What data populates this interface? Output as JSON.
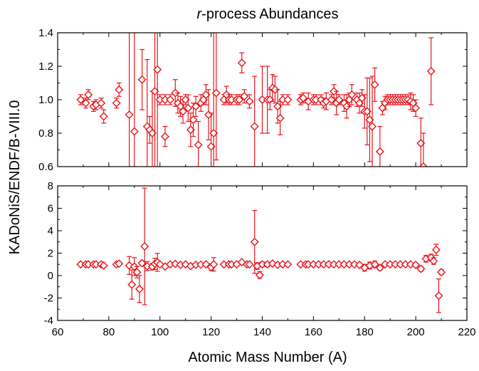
{
  "chart_data": {
    "type": "scatter",
    "title_italic": "r",
    "title_rest": "-process Abundances",
    "xlabel": "Atomic Mass Number (A)",
    "ylabel": "KADoNiS/ENDF/B-VIII.0",
    "xlim": [
      60,
      220
    ],
    "x_ticks": [
      60,
      80,
      100,
      120,
      140,
      160,
      180,
      200,
      220
    ],
    "series_color": "#e8141c",
    "marker": "open-diamond",
    "panels": [
      {
        "id": "top",
        "ylim": [
          0.6,
          1.4
        ],
        "y_ticks": [
          0.6,
          0.8,
          1.0,
          1.2,
          1.4
        ],
        "y_tick_labels": [
          "0.6",
          "0.8",
          "1.0",
          "1.2",
          "1.4"
        ],
        "points": [
          {
            "x": 69,
            "y": 1.0,
            "err": 0.03
          },
          {
            "x": 71,
            "y": 0.98,
            "err": 0.03
          },
          {
            "x": 72,
            "y": 1.03,
            "err": 0.03
          },
          {
            "x": 74,
            "y": 0.96,
            "err": 0.03
          },
          {
            "x": 75,
            "y": 0.97,
            "err": 0.03
          },
          {
            "x": 77,
            "y": 0.98,
            "err": 0.03
          },
          {
            "x": 78,
            "y": 0.9,
            "err": 0.04
          },
          {
            "x": 83,
            "y": 0.98,
            "err": 0.03
          },
          {
            "x": 84,
            "y": 1.06,
            "err": 0.04
          },
          {
            "x": 88,
            "y": 0.91,
            "err": 0.8
          },
          {
            "x": 90,
            "y": 0.81,
            "err": 0.8
          },
          {
            "x": 93,
            "y": 1.12,
            "err": 0.18
          },
          {
            "x": 95,
            "y": 0.84,
            "err": 0.4
          },
          {
            "x": 96,
            "y": 0.82,
            "err": 0.08
          },
          {
            "x": 97,
            "y": 0.8,
            "err": 0.25
          },
          {
            "x": 98,
            "y": 1.05,
            "err": 0.5
          },
          {
            "x": 99,
            "y": 1.18,
            "err": 0.8
          },
          {
            "x": 100,
            "y": 1.0,
            "err": 0.03
          },
          {
            "x": 102,
            "y": 1.0,
            "err": 0.03
          },
          {
            "x": 102,
            "y": 0.78,
            "err": 0.06
          },
          {
            "x": 104,
            "y": 1.0,
            "err": 0.03
          },
          {
            "x": 106,
            "y": 1.04,
            "err": 0.08
          },
          {
            "x": 107,
            "y": 0.98,
            "err": 0.06
          },
          {
            "x": 108,
            "y": 0.96,
            "err": 0.06
          },
          {
            "x": 109,
            "y": 0.93,
            "err": 0.07
          },
          {
            "x": 110,
            "y": 1.0,
            "err": 0.03
          },
          {
            "x": 111,
            "y": 0.95,
            "err": 0.08
          },
          {
            "x": 112,
            "y": 0.82,
            "err": 0.1
          },
          {
            "x": 113,
            "y": 0.88,
            "err": 0.1
          },
          {
            "x": 114,
            "y": 0.96,
            "err": 0.06
          },
          {
            "x": 115,
            "y": 0.73,
            "err": 0.14
          },
          {
            "x": 116,
            "y": 0.98,
            "err": 0.05
          },
          {
            "x": 117,
            "y": 1.0,
            "err": 0.03
          },
          {
            "x": 118,
            "y": 1.03,
            "err": 0.06
          },
          {
            "x": 119,
            "y": 0.91,
            "err": 0.15
          },
          {
            "x": 120,
            "y": 0.72,
            "err": 0.2
          },
          {
            "x": 121,
            "y": 0.8,
            "err": 0.6
          },
          {
            "x": 122,
            "y": 1.04,
            "err": 0.4
          },
          {
            "x": 125,
            "y": 1.0,
            "err": 0.03
          },
          {
            "x": 126,
            "y": 1.03,
            "err": 0.05
          },
          {
            "x": 127,
            "y": 1.0,
            "err": 0.03
          },
          {
            "x": 128,
            "y": 1.0,
            "err": 0.03
          },
          {
            "x": 130,
            "y": 1.0,
            "err": 0.03
          },
          {
            "x": 131,
            "y": 1.0,
            "err": 0.03
          },
          {
            "x": 132,
            "y": 1.22,
            "err": 0.06
          },
          {
            "x": 133,
            "y": 1.02,
            "err": 0.04
          },
          {
            "x": 135,
            "y": 0.99,
            "err": 0.04
          },
          {
            "x": 137,
            "y": 0.84,
            "err": 0.3
          },
          {
            "x": 140,
            "y": 1.0,
            "err": 0.2
          },
          {
            "x": 142,
            "y": 1.0,
            "err": 0.2
          },
          {
            "x": 143,
            "y": 1.0,
            "err": 0.06
          },
          {
            "x": 144,
            "y": 1.07,
            "err": 0.08
          },
          {
            "x": 145,
            "y": 1.06,
            "err": 0.08
          },
          {
            "x": 146,
            "y": 0.96,
            "err": 0.1
          },
          {
            "x": 147,
            "y": 0.89,
            "err": 0.1
          },
          {
            "x": 148,
            "y": 1.0,
            "err": 0.03
          },
          {
            "x": 150,
            "y": 1.0,
            "err": 0.03
          },
          {
            "x": 155,
            "y": 1.0,
            "err": 0.03
          },
          {
            "x": 156,
            "y": 1.01,
            "err": 0.03
          },
          {
            "x": 158,
            "y": 0.99,
            "err": 0.05
          },
          {
            "x": 160,
            "y": 1.0,
            "err": 0.03
          },
          {
            "x": 161,
            "y": 1.0,
            "err": 0.03
          },
          {
            "x": 163,
            "y": 1.0,
            "err": 0.03
          },
          {
            "x": 164,
            "y": 0.98,
            "err": 0.03
          },
          {
            "x": 165,
            "y": 0.99,
            "err": 0.05
          },
          {
            "x": 167,
            "y": 1.0,
            "err": 0.03
          },
          {
            "x": 168,
            "y": 1.05,
            "err": 0.04
          },
          {
            "x": 169,
            "y": 0.98,
            "err": 0.07
          },
          {
            "x": 170,
            "y": 1.0,
            "err": 0.03
          },
          {
            "x": 172,
            "y": 0.98,
            "err": 0.05
          },
          {
            "x": 173,
            "y": 0.96,
            "err": 0.07
          },
          {
            "x": 174,
            "y": 1.0,
            "err": 0.04
          },
          {
            "x": 175,
            "y": 1.03,
            "err": 0.06
          },
          {
            "x": 177,
            "y": 1.0,
            "err": 0.04
          },
          {
            "x": 178,
            "y": 0.98,
            "err": 0.06
          },
          {
            "x": 179,
            "y": 1.01,
            "err": 0.05
          },
          {
            "x": 180,
            "y": 0.93,
            "err": 0.1
          },
          {
            "x": 181,
            "y": 0.93,
            "err": 0.2
          },
          {
            "x": 182,
            "y": 0.88,
            "err": 0.25
          },
          {
            "x": 183,
            "y": 0.84,
            "err": 0.3
          },
          {
            "x": 184,
            "y": 1.09,
            "err": 0.1
          },
          {
            "x": 186,
            "y": 0.69,
            "err": 0.15
          },
          {
            "x": 187,
            "y": 0.95,
            "err": 0.04
          },
          {
            "x": 188,
            "y": 0.98,
            "err": 0.04
          },
          {
            "x": 189,
            "y": 1.0,
            "err": 0.03
          },
          {
            "x": 190,
            "y": 1.0,
            "err": 0.03
          },
          {
            "x": 191,
            "y": 1.0,
            "err": 0.03
          },
          {
            "x": 192,
            "y": 1.0,
            "err": 0.03
          },
          {
            "x": 193,
            "y": 1.0,
            "err": 0.03
          },
          {
            "x": 194,
            "y": 1.0,
            "err": 0.03
          },
          {
            "x": 195,
            "y": 1.0,
            "err": 0.03
          },
          {
            "x": 196,
            "y": 1.0,
            "err": 0.03
          },
          {
            "x": 197,
            "y": 1.0,
            "err": 0.03
          },
          {
            "x": 198,
            "y": 0.99,
            "err": 0.05
          },
          {
            "x": 199,
            "y": 0.98,
            "err": 0.05
          },
          {
            "x": 200,
            "y": 0.95,
            "err": 0.05
          },
          {
            "x": 202,
            "y": 0.74,
            "err": 0.15
          },
          {
            "x": 203,
            "y": 0.6,
            "err": 0.2
          },
          {
            "x": 206,
            "y": 1.17,
            "err": 0.2
          }
        ]
      },
      {
        "id": "bottom",
        "ylim": [
          -4,
          8
        ],
        "y_ticks": [
          -4,
          -2,
          0,
          2,
          4,
          6,
          8
        ],
        "y_tick_labels": [
          "-4",
          "-2",
          "0",
          "2",
          "4",
          "6",
          "8"
        ],
        "points": [
          {
            "x": 69,
            "y": 1.0,
            "err": 0.1
          },
          {
            "x": 71,
            "y": 1.0,
            "err": 0.1
          },
          {
            "x": 72,
            "y": 1.0,
            "err": 0.1
          },
          {
            "x": 74,
            "y": 1.0,
            "err": 0.1
          },
          {
            "x": 75,
            "y": 1.0,
            "err": 0.1
          },
          {
            "x": 77,
            "y": 1.0,
            "err": 0.1
          },
          {
            "x": 78,
            "y": 0.9,
            "err": 0.1
          },
          {
            "x": 83,
            "y": 1.0,
            "err": 0.1
          },
          {
            "x": 84,
            "y": 1.06,
            "err": 0.1
          },
          {
            "x": 88,
            "y": 0.9,
            "err": 0.8
          },
          {
            "x": 89,
            "y": -0.8,
            "err": 1.3
          },
          {
            "x": 90,
            "y": 0.8,
            "err": 0.8
          },
          {
            "x": 91,
            "y": 0.3,
            "err": 0.5
          },
          {
            "x": 92,
            "y": -1.2,
            "err": 1.2
          },
          {
            "x": 93,
            "y": 1.1,
            "err": 0.2
          },
          {
            "x": 94,
            "y": 2.6,
            "err": 5.2
          },
          {
            "x": 95,
            "y": 0.84,
            "err": 0.4
          },
          {
            "x": 97,
            "y": 0.8,
            "err": 0.3
          },
          {
            "x": 98,
            "y": 1.05,
            "err": 0.5
          },
          {
            "x": 99,
            "y": 1.18,
            "err": 0.8
          },
          {
            "x": 100,
            "y": 1.0,
            "err": 0.1
          },
          {
            "x": 102,
            "y": 0.8,
            "err": 0.1
          },
          {
            "x": 104,
            "y": 1.0,
            "err": 0.1
          },
          {
            "x": 106,
            "y": 1.04,
            "err": 0.1
          },
          {
            "x": 108,
            "y": 0.96,
            "err": 0.1
          },
          {
            "x": 110,
            "y": 1.0,
            "err": 0.1
          },
          {
            "x": 112,
            "y": 0.85,
            "err": 0.1
          },
          {
            "x": 114,
            "y": 0.96,
            "err": 0.1
          },
          {
            "x": 116,
            "y": 0.98,
            "err": 0.1
          },
          {
            "x": 118,
            "y": 1.0,
            "err": 0.1
          },
          {
            "x": 120,
            "y": 0.75,
            "err": 0.3
          },
          {
            "x": 121,
            "y": 1.0,
            "err": 0.6
          },
          {
            "x": 125,
            "y": 1.0,
            "err": 0.1
          },
          {
            "x": 127,
            "y": 1.0,
            "err": 0.1
          },
          {
            "x": 128,
            "y": 1.0,
            "err": 0.1
          },
          {
            "x": 130,
            "y": 1.0,
            "err": 0.1
          },
          {
            "x": 132,
            "y": 1.2,
            "err": 0.1
          },
          {
            "x": 134,
            "y": 1.0,
            "err": 0.1
          },
          {
            "x": 135,
            "y": 1.0,
            "err": 0.1
          },
          {
            "x": 137,
            "y": 3.0,
            "err": 2.8
          },
          {
            "x": 138,
            "y": 0.85,
            "err": 0.3
          },
          {
            "x": 139,
            "y": 0.05,
            "err": 0.3
          },
          {
            "x": 140,
            "y": 1.0,
            "err": 0.2
          },
          {
            "x": 142,
            "y": 1.0,
            "err": 0.2
          },
          {
            "x": 144,
            "y": 1.07,
            "err": 0.1
          },
          {
            "x": 146,
            "y": 0.96,
            "err": 0.1
          },
          {
            "x": 148,
            "y": 1.0,
            "err": 0.1
          },
          {
            "x": 150,
            "y": 1.0,
            "err": 0.1
          },
          {
            "x": 155,
            "y": 1.0,
            "err": 0.1
          },
          {
            "x": 157,
            "y": 1.0,
            "err": 0.1
          },
          {
            "x": 158,
            "y": 1.0,
            "err": 0.1
          },
          {
            "x": 160,
            "y": 1.0,
            "err": 0.1
          },
          {
            "x": 162,
            "y": 1.0,
            "err": 0.1
          },
          {
            "x": 164,
            "y": 1.0,
            "err": 0.1
          },
          {
            "x": 166,
            "y": 1.0,
            "err": 0.1
          },
          {
            "x": 168,
            "y": 1.0,
            "err": 0.1
          },
          {
            "x": 170,
            "y": 1.0,
            "err": 0.1
          },
          {
            "x": 172,
            "y": 1.0,
            "err": 0.1
          },
          {
            "x": 174,
            "y": 1.0,
            "err": 0.1
          },
          {
            "x": 176,
            "y": 1.0,
            "err": 0.1
          },
          {
            "x": 178,
            "y": 0.95,
            "err": 0.1
          },
          {
            "x": 180,
            "y": 0.7,
            "err": 0.3
          },
          {
            "x": 182,
            "y": 0.9,
            "err": 0.3
          },
          {
            "x": 184,
            "y": 1.0,
            "err": 0.3
          },
          {
            "x": 186,
            "y": 0.7,
            "err": 0.2
          },
          {
            "x": 188,
            "y": 1.0,
            "err": 0.1
          },
          {
            "x": 190,
            "y": 1.0,
            "err": 0.1
          },
          {
            "x": 192,
            "y": 1.0,
            "err": 0.1
          },
          {
            "x": 194,
            "y": 1.0,
            "err": 0.1
          },
          {
            "x": 196,
            "y": 1.0,
            "err": 0.1
          },
          {
            "x": 198,
            "y": 1.0,
            "err": 0.1
          },
          {
            "x": 200,
            "y": 0.95,
            "err": 0.1
          },
          {
            "x": 202,
            "y": 0.6,
            "err": 0.2
          },
          {
            "x": 204,
            "y": 1.5,
            "err": 0.3
          },
          {
            "x": 206,
            "y": 1.6,
            "err": 0.3
          },
          {
            "x": 207,
            "y": 1.3,
            "err": 0.3
          },
          {
            "x": 208,
            "y": 2.3,
            "err": 0.5
          },
          {
            "x": 209,
            "y": -1.8,
            "err": 1.5
          },
          {
            "x": 210,
            "y": 0.3,
            "err": 0.2
          }
        ]
      }
    ]
  }
}
